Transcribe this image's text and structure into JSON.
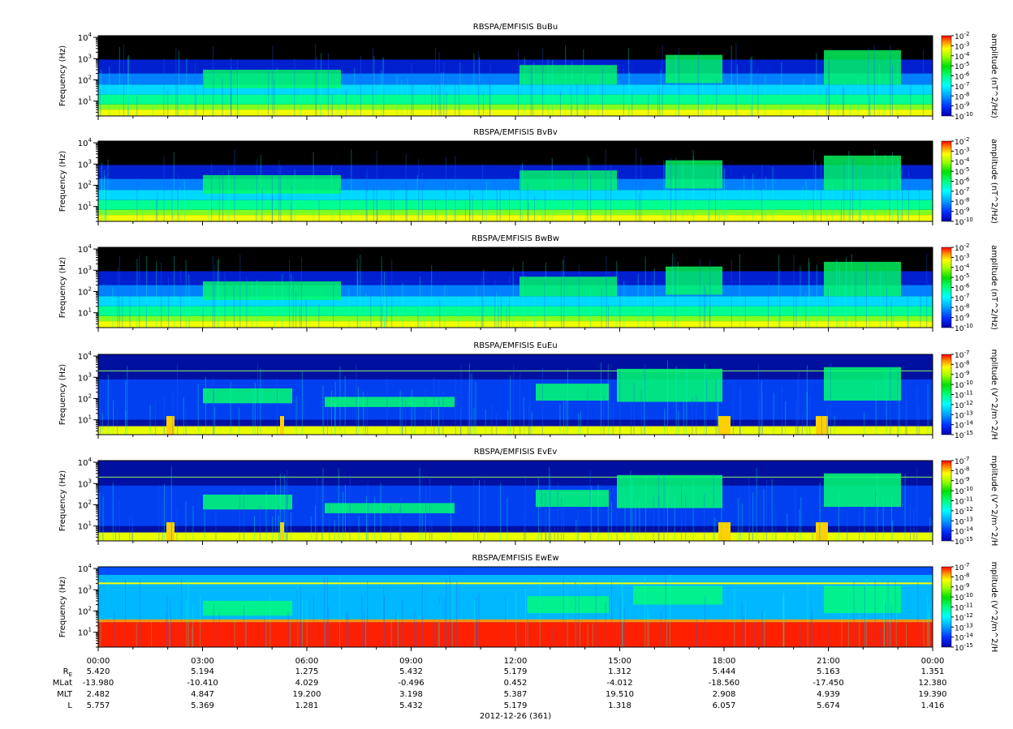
{
  "chart_data": [
    {
      "type": "heatmap",
      "title": "RBSPA/EMFISIS  BuBu",
      "ylabel": "Frequency (Hz)",
      "yscale": "log",
      "ylim": [
        2,
        12000
      ],
      "yticks": [
        {
          "base": "10",
          "exp": "1"
        },
        {
          "base": "10",
          "exp": "2"
        },
        {
          "base": "10",
          "exp": "3"
        },
        {
          "base": "10",
          "exp": "4"
        }
      ],
      "colorbar": {
        "label": "amplitude (nT^2/Hz)",
        "scale": "log",
        "range": [
          1e-10,
          0.01
        ],
        "ticks": [
          {
            "base": "10",
            "exp": "-2"
          },
          {
            "base": "10",
            "exp": "-3"
          },
          {
            "base": "10",
            "exp": "-4"
          },
          {
            "base": "10",
            "exp": "-5"
          },
          {
            "base": "10",
            "exp": "-6"
          },
          {
            "base": "10",
            "exp": "-7"
          },
          {
            "base": "10",
            "exp": "-8"
          },
          {
            "base": "10",
            "exp": "-9"
          },
          {
            "base": "10",
            "exp": "-10"
          }
        ]
      }
    },
    {
      "type": "heatmap",
      "title": "RBSPA/EMFISIS  BvBv",
      "ylabel": "Frequency (Hz)",
      "yscale": "log",
      "ylim": [
        2,
        12000
      ],
      "yticks": [
        {
          "base": "10",
          "exp": "1"
        },
        {
          "base": "10",
          "exp": "2"
        },
        {
          "base": "10",
          "exp": "3"
        },
        {
          "base": "10",
          "exp": "4"
        }
      ],
      "colorbar": {
        "label": "amplitude (nT^2/Hz)",
        "scale": "log",
        "range": [
          1e-10,
          0.01
        ],
        "ticks": [
          {
            "base": "10",
            "exp": "-2"
          },
          {
            "base": "10",
            "exp": "-3"
          },
          {
            "base": "10",
            "exp": "-4"
          },
          {
            "base": "10",
            "exp": "-5"
          },
          {
            "base": "10",
            "exp": "-6"
          },
          {
            "base": "10",
            "exp": "-7"
          },
          {
            "base": "10",
            "exp": "-8"
          },
          {
            "base": "10",
            "exp": "-9"
          },
          {
            "base": "10",
            "exp": "-10"
          }
        ]
      }
    },
    {
      "type": "heatmap",
      "title": "RBSPA/EMFISIS  BwBw",
      "ylabel": "Frequency (Hz)",
      "yscale": "log",
      "ylim": [
        2,
        12000
      ],
      "yticks": [
        {
          "base": "10",
          "exp": "1"
        },
        {
          "base": "10",
          "exp": "2"
        },
        {
          "base": "10",
          "exp": "3"
        },
        {
          "base": "10",
          "exp": "4"
        }
      ],
      "colorbar": {
        "label": "amplitude (nT^2/Hz)",
        "scale": "log",
        "range": [
          1e-10,
          0.01
        ],
        "ticks": [
          {
            "base": "10",
            "exp": "-2"
          },
          {
            "base": "10",
            "exp": "-3"
          },
          {
            "base": "10",
            "exp": "-4"
          },
          {
            "base": "10",
            "exp": "-5"
          },
          {
            "base": "10",
            "exp": "-6"
          },
          {
            "base": "10",
            "exp": "-7"
          },
          {
            "base": "10",
            "exp": "-8"
          },
          {
            "base": "10",
            "exp": "-9"
          },
          {
            "base": "10",
            "exp": "-10"
          }
        ]
      }
    },
    {
      "type": "heatmap",
      "title": "RBSPA/EMFISIS  EuEu",
      "ylabel": "Frequency (Hz)",
      "yscale": "log",
      "ylim": [
        2,
        12000
      ],
      "yticks": [
        {
          "base": "10",
          "exp": "1"
        },
        {
          "base": "10",
          "exp": "2"
        },
        {
          "base": "10",
          "exp": "3"
        },
        {
          "base": "10",
          "exp": "4"
        }
      ],
      "colorbar": {
        "label": "mplitude (V^2/m^2/H",
        "scale": "log",
        "range": [
          1e-15,
          1e-07
        ],
        "ticks": [
          {
            "base": "10",
            "exp": "-7"
          },
          {
            "base": "10",
            "exp": "-8"
          },
          {
            "base": "10",
            "exp": "-9"
          },
          {
            "base": "10",
            "exp": "-10"
          },
          {
            "base": "10",
            "exp": "-11"
          },
          {
            "base": "10",
            "exp": "-12"
          },
          {
            "base": "10",
            "exp": "-13"
          },
          {
            "base": "10",
            "exp": "-14"
          },
          {
            "base": "10",
            "exp": "-15"
          }
        ]
      }
    },
    {
      "type": "heatmap",
      "title": "RBSPA/EMFISIS  EvEv",
      "ylabel": "Frequency (Hz)",
      "yscale": "log",
      "ylim": [
        2,
        12000
      ],
      "yticks": [
        {
          "base": "10",
          "exp": "1"
        },
        {
          "base": "10",
          "exp": "2"
        },
        {
          "base": "10",
          "exp": "3"
        },
        {
          "base": "10",
          "exp": "4"
        }
      ],
      "colorbar": {
        "label": "mplitude (V^2/m^2/H",
        "scale": "log",
        "range": [
          1e-15,
          1e-07
        ],
        "ticks": [
          {
            "base": "10",
            "exp": "-7"
          },
          {
            "base": "10",
            "exp": "-8"
          },
          {
            "base": "10",
            "exp": "-9"
          },
          {
            "base": "10",
            "exp": "-10"
          },
          {
            "base": "10",
            "exp": "-11"
          },
          {
            "base": "10",
            "exp": "-12"
          },
          {
            "base": "10",
            "exp": "-13"
          },
          {
            "base": "10",
            "exp": "-14"
          },
          {
            "base": "10",
            "exp": "-15"
          }
        ]
      }
    },
    {
      "type": "heatmap",
      "title": "RBSPA/EMFISIS  EwEw",
      "ylabel": "Frequency (Hz)",
      "yscale": "log",
      "ylim": [
        2,
        12000
      ],
      "yticks": [
        {
          "base": "10",
          "exp": "1"
        },
        {
          "base": "10",
          "exp": "2"
        },
        {
          "base": "10",
          "exp": "3"
        },
        {
          "base": "10",
          "exp": "4"
        }
      ],
      "colorbar": {
        "label": "mplitude (V^2/m^2/H",
        "scale": "log",
        "range": [
          1e-15,
          1e-07
        ],
        "ticks": [
          {
            "base": "10",
            "exp": "-7"
          },
          {
            "base": "10",
            "exp": "-8"
          },
          {
            "base": "10",
            "exp": "-9"
          },
          {
            "base": "10",
            "exp": "-10"
          },
          {
            "base": "10",
            "exp": "-11"
          },
          {
            "base": "10",
            "exp": "-12"
          },
          {
            "base": "10",
            "exp": "-13"
          },
          {
            "base": "10",
            "exp": "-14"
          },
          {
            "base": "10",
            "exp": "-15"
          }
        ]
      }
    }
  ],
  "x_axis": {
    "times": [
      "00:00",
      "03:00",
      "06:00",
      "09:00",
      "12:00",
      "15:00",
      "18:00",
      "21:00",
      "00:00"
    ],
    "xlabel": "2012-12-26 (361)",
    "ephemeris": [
      {
        "label_main": "R",
        "label_sub": "E",
        "values": [
          "5.420",
          "5.194",
          "1.275",
          "5.432",
          "5.179",
          "1.312",
          "5.444",
          "5.163",
          "1.351"
        ]
      },
      {
        "label_main": "MLat",
        "label_sub": "",
        "values": [
          "-13.980",
          "-10.410",
          "4.029",
          "-0.496",
          "0.452",
          "-4.012",
          "-18.560",
          "-17.450",
          "12.380"
        ]
      },
      {
        "label_main": "MLT",
        "label_sub": "",
        "values": [
          "2.482",
          "4.847",
          "19.200",
          "3.198",
          "5.387",
          "19.510",
          "2.908",
          "4.939",
          "19.390"
        ]
      },
      {
        "label_main": "L",
        "label_sub": "",
        "values": [
          "5.757",
          "5.369",
          "1.281",
          "5.432",
          "5.179",
          "1.318",
          "6.057",
          "5.674",
          "1.416"
        ]
      }
    ]
  }
}
